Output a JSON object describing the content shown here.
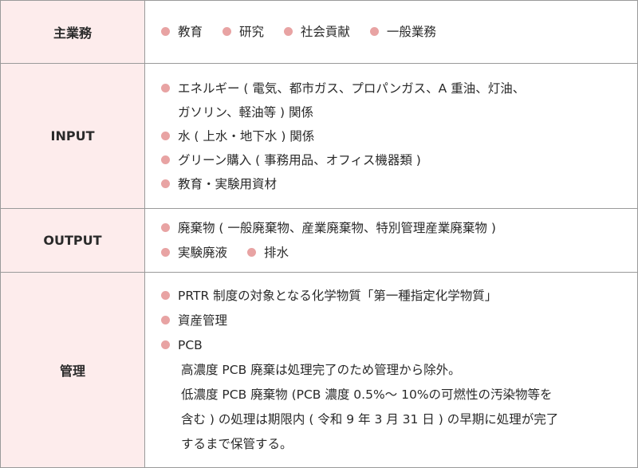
{
  "rows": [
    {
      "header": "主業務",
      "items": [
        "教育",
        "研究",
        "社会貢献",
        "一般業務"
      ]
    },
    {
      "header": "INPUT",
      "items": [
        {
          "text": "エネルギー ( 電気、都市ガス、プロパンガス、A 重油、灯油、",
          "cont": "ガソリン、軽油等 ) 関係"
        },
        {
          "text": "水 ( 上水・地下水 ) 関係"
        },
        {
          "text": "グリーン購入 ( 事務用品、オフィス機器類 )"
        },
        {
          "text": "教育・実験用資材"
        }
      ]
    },
    {
      "header": "OUTPUT",
      "items": [
        "廃棄物 ( 一般廃棄物、産業廃棄物、特別管理産業廃棄物 )",
        "実験廃液",
        "排水"
      ]
    },
    {
      "header": "管理",
      "items": [
        "PRTR 制度の対象となる化学物質「第一種指定化学物質」",
        "資産管理",
        "PCB"
      ],
      "notes": [
        "高濃度 PCB 廃棄は処理完了のため管理から除外。",
        "低濃度 PCB 廃棄物 (PCB 濃度 0.5%～ 10%の可燃性の汚染物等を",
        "含む ) の処理は期限内 ( 令和 9 年 3 月 31 日 ) の早期に処理が完了",
        "するまで保管する。"
      ]
    }
  ],
  "colors": {
    "header_bg": "#fdecec",
    "bullet": "#e8a3a3",
    "border": "#9a9a9a"
  }
}
